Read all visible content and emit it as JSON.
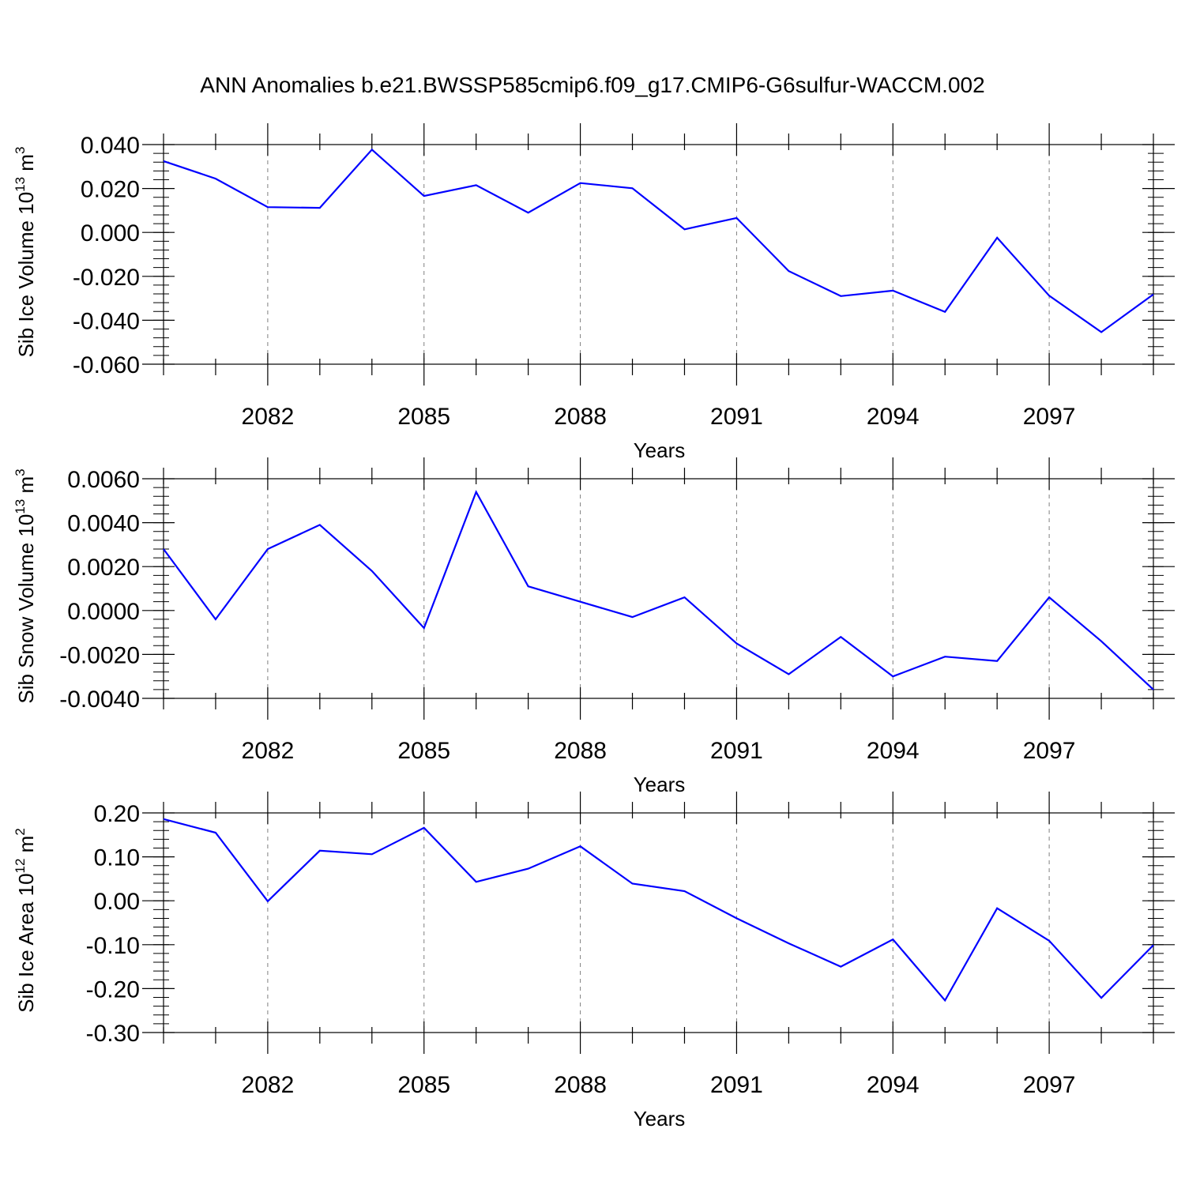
{
  "title": "ANN Anomalies b.e21.BWSSP585cmip6.f09_g17.CMIP6-G6sulfur-WACCM.002",
  "colors": {
    "line": "#0000ff",
    "axis": "#000000",
    "grid": "#808080"
  },
  "chart_data": [
    {
      "type": "line",
      "xlabel": "Years",
      "ylabel": {
        "main": "Sib Ice Volume 10",
        "exp": "13",
        "unit": " m",
        "unit_exp": "3"
      },
      "xlim": [
        2080,
        2099
      ],
      "ylim": [
        -0.06,
        0.04
      ],
      "x_ticks": [
        2082,
        2085,
        2088,
        2091,
        2094,
        2097
      ],
      "x_tick_labels": [
        "2082",
        "2085",
        "2088",
        "2091",
        "2094",
        "2097"
      ],
      "y_ticks": [
        -0.06,
        -0.04,
        -0.02,
        0.0,
        0.02,
        0.04
      ],
      "y_tick_labels": [
        "-0.060",
        "-0.040",
        "-0.020",
        "0.000",
        "0.020",
        "0.040"
      ],
      "grid": "x-dashed",
      "series": [
        {
          "x": [
            2080,
            2081,
            2082,
            2083,
            2084,
            2085,
            2086,
            2087,
            2088,
            2089,
            2090,
            2091,
            2092,
            2093,
            2094,
            2095,
            2096,
            2097,
            2098,
            2099
          ],
          "values": [
            0.0325,
            0.0245,
            0.0115,
            0.0112,
            0.0377,
            0.0166,
            0.0215,
            0.009,
            0.0225,
            0.0201,
            0.0014,
            0.0066,
            -0.0176,
            -0.029,
            -0.0265,
            -0.0362,
            -0.0024,
            -0.0288,
            -0.0454,
            -0.0282
          ]
        }
      ]
    },
    {
      "type": "line",
      "xlabel": "Years",
      "ylabel": {
        "main": "Sib Snow Volume 10",
        "exp": "13",
        "unit": " m",
        "unit_exp": "3"
      },
      "xlim": [
        2080,
        2099
      ],
      "ylim": [
        -0.004,
        0.006
      ],
      "x_ticks": [
        2082,
        2085,
        2088,
        2091,
        2094,
        2097
      ],
      "x_tick_labels": [
        "2082",
        "2085",
        "2088",
        "2091",
        "2094",
        "2097"
      ],
      "y_ticks": [
        -0.004,
        -0.002,
        0.0,
        0.002,
        0.004,
        0.006
      ],
      "y_tick_labels": [
        "-0.0040",
        "-0.0020",
        "0.0000",
        "0.0020",
        "0.0040",
        "0.0060"
      ],
      "grid": "x-dashed",
      "series": [
        {
          "x": [
            2080,
            2081,
            2082,
            2083,
            2084,
            2085,
            2086,
            2087,
            2088,
            2089,
            2090,
            2091,
            2092,
            2093,
            2094,
            2095,
            2096,
            2097,
            2098,
            2099
          ],
          "values": [
            0.0028,
            -0.0004,
            0.0028,
            0.0039,
            0.0018,
            -0.0008,
            0.0054,
            0.0011,
            0.0004,
            -0.0003,
            0.0006,
            -0.0015,
            -0.0029,
            -0.0012,
            -0.003,
            -0.0021,
            -0.0023,
            0.0006,
            -0.0014,
            -0.0036
          ]
        }
      ]
    },
    {
      "type": "line",
      "xlabel": "Years",
      "ylabel": {
        "main": "Sib Ice Area 10",
        "exp": "12",
        "unit": " m",
        "unit_exp": "2"
      },
      "xlim": [
        2080,
        2099
      ],
      "ylim": [
        -0.3,
        0.2
      ],
      "x_ticks": [
        2082,
        2085,
        2088,
        2091,
        2094,
        2097
      ],
      "x_tick_labels": [
        "2082",
        "2085",
        "2088",
        "2091",
        "2094",
        "2097"
      ],
      "y_ticks": [
        -0.3,
        -0.2,
        -0.1,
        0.0,
        0.1,
        0.2
      ],
      "y_tick_labels": [
        "-0.30",
        "-0.20",
        "-0.10",
        "0.00",
        "0.10",
        "0.20"
      ],
      "grid": "x-dashed",
      "series": [
        {
          "x": [
            2080,
            2081,
            2082,
            2083,
            2084,
            2085,
            2086,
            2087,
            2088,
            2089,
            2090,
            2091,
            2092,
            2093,
            2094,
            2095,
            2096,
            2097,
            2098,
            2099
          ],
          "values": [
            0.186,
            0.155,
            -0.001,
            0.114,
            0.106,
            0.166,
            0.043,
            0.073,
            0.124,
            0.039,
            0.022,
            -0.04,
            -0.097,
            -0.15,
            -0.088,
            -0.227,
            -0.017,
            -0.091,
            -0.221,
            -0.101
          ]
        }
      ]
    }
  ]
}
